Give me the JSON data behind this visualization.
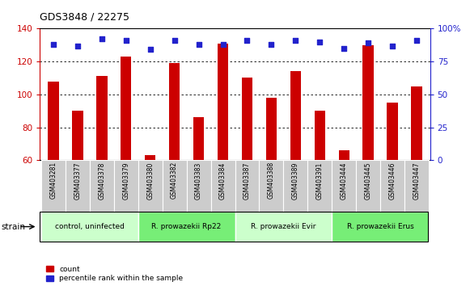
{
  "title": "GDS3848 / 22275",
  "samples": [
    "GSM403281",
    "GSM403377",
    "GSM403378",
    "GSM403379",
    "GSM403380",
    "GSM403382",
    "GSM403383",
    "GSM403384",
    "GSM403387",
    "GSM403388",
    "GSM403389",
    "GSM403391",
    "GSM403444",
    "GSM403445",
    "GSM403446",
    "GSM403447"
  ],
  "count_values": [
    108,
    90,
    111,
    123,
    63,
    119,
    86,
    131,
    110,
    98,
    114,
    90,
    66,
    130,
    95,
    105
  ],
  "percentile_values": [
    88,
    87,
    92,
    91,
    84,
    91,
    88,
    88,
    91,
    88,
    91,
    90,
    85,
    89,
    87,
    91
  ],
  "groups": [
    {
      "label": "control, uninfected",
      "start": 0,
      "end": 4
    },
    {
      "label": "R. prowazekii Rp22",
      "start": 4,
      "end": 8
    },
    {
      "label": "R. prowazekii Evir",
      "start": 8,
      "end": 12
    },
    {
      "label": "R. prowazekii Erus",
      "start": 12,
      "end": 16
    }
  ],
  "group_colors": [
    "#ccffcc",
    "#77ee77",
    "#ccffcc",
    "#77ee77"
  ],
  "ylim_left": [
    60,
    140
  ],
  "ylim_right": [
    0,
    100
  ],
  "bar_color": "#cc0000",
  "dot_color": "#2222cc",
  "left_color": "#cc0000",
  "right_color": "#2222cc",
  "grid_yticks": [
    80,
    100,
    120
  ],
  "right_yticks": [
    0,
    25,
    50,
    75,
    100
  ],
  "left_yticks": [
    60,
    80,
    100,
    120,
    140
  ],
  "xlabel_bg": "#cccccc",
  "bar_width": 0.45,
  "legend_count_label": "count",
  "legend_percentile_label": "percentile rank within the sample"
}
